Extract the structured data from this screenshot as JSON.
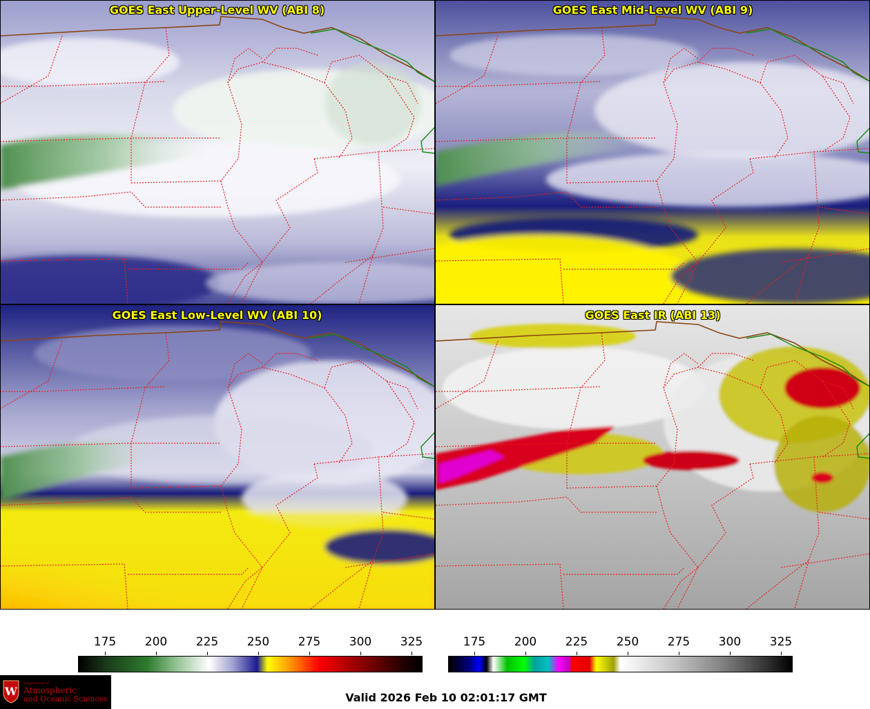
{
  "panels": [
    {
      "title": "GOES East Upper-Level WV (ABI 8)"
    },
    {
      "title": "GOES East Mid-Level WV (ABI 9)"
    },
    {
      "title": "GOES East Low-Level WV (ABI 10)"
    },
    {
      "title": "GOES East IR (ABI 13)"
    }
  ],
  "colorbars": {
    "wv": {
      "ticks": [
        "175",
        "200",
        "225",
        "250",
        "275",
        "300",
        "325"
      ]
    },
    "ir": {
      "ticks": [
        "175",
        "200",
        "225",
        "250",
        "275",
        "300",
        "325"
      ]
    }
  },
  "colors": {
    "title": "#ffff00",
    "state_borders": "#e8201e",
    "country_border": "#8b4513",
    "coast": "#138a13"
  },
  "logo": {
    "dept": "Department of",
    "line1": "Atmospheric",
    "line2": "and Oceanic Sciences",
    "icon": "uw-crest-icon"
  },
  "valid": "Valid 2026 Feb 10 02:01:17 GMT"
}
